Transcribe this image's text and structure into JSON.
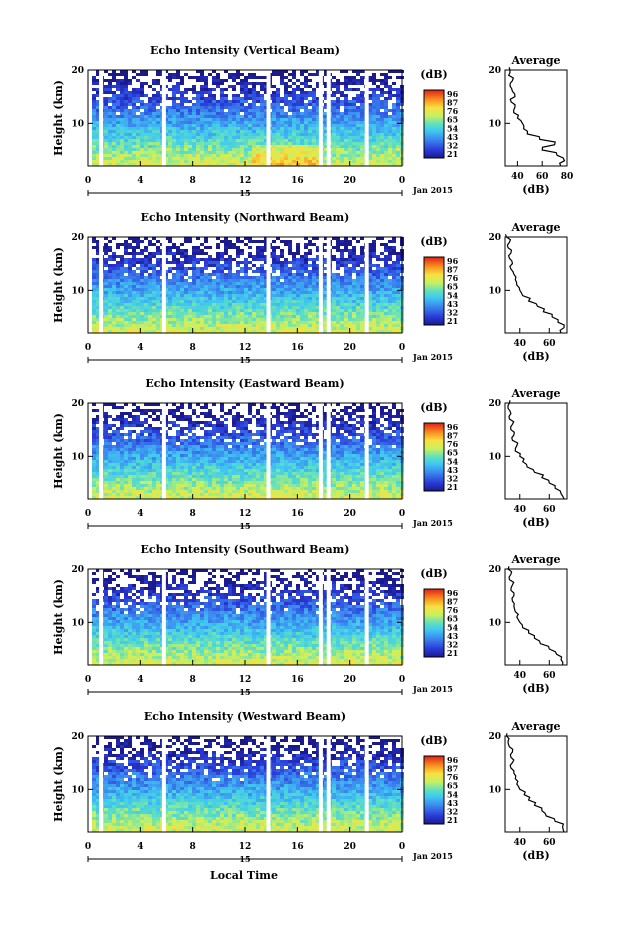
{
  "chart_data": [
    {
      "type": "heatmap",
      "title": "Echo Intensity (Vertical Beam)",
      "ylabel": "Height (km)",
      "x_ticks": [
        "0",
        "4",
        "8",
        "12",
        "16",
        "20",
        "0"
      ],
      "xlim": [
        0,
        24
      ],
      "y_ticks": [
        "20",
        "10"
      ],
      "ylim": [
        2,
        20
      ],
      "day_label": "15",
      "month_label": "Jan 2015",
      "gaps_hours": [
        1.0,
        5.8,
        13.8,
        17.8,
        18.4,
        21.3
      ],
      "colorbar": {
        "unit": "(dB)",
        "ticks": [
          "96",
          "87",
          "76",
          "65",
          "54",
          "43",
          "32",
          "21"
        ]
      },
      "average": {
        "title": "Average",
        "xlabel": "(dB)",
        "x_ticks": [
          "40",
          "60",
          "80"
        ],
        "xlim": [
          30,
          80
        ],
        "y_ticks": [
          "20",
          "10"
        ],
        "ylim": [
          2,
          20
        ],
        "profile": [
          [
            2,
            75
          ],
          [
            3,
            78
          ],
          [
            4,
            72
          ],
          [
            5,
            60
          ],
          [
            6,
            70
          ],
          [
            7,
            58
          ],
          [
            8,
            48
          ],
          [
            9,
            45
          ],
          [
            10,
            44
          ],
          [
            11,
            40
          ],
          [
            12,
            37
          ],
          [
            13,
            38
          ],
          [
            14,
            35
          ],
          [
            15,
            38
          ],
          [
            16,
            36
          ],
          [
            17,
            34
          ],
          [
            18,
            36
          ],
          [
            19,
            33
          ],
          [
            20,
            34
          ]
        ]
      }
    },
    {
      "type": "heatmap",
      "title": "Echo Intensity (Northward Beam)",
      "ylabel": "Height (km)",
      "x_ticks": [
        "0",
        "4",
        "8",
        "12",
        "16",
        "20",
        "0"
      ],
      "xlim": [
        0,
        24
      ],
      "y_ticks": [
        "20",
        "10"
      ],
      "ylim": [
        2,
        20
      ],
      "day_label": "15",
      "month_label": "Jan 2015",
      "gaps_hours": [
        1.0,
        5.8,
        13.8,
        17.8,
        18.4,
        21.3
      ],
      "colorbar": {
        "unit": "(dB)",
        "ticks": [
          "96",
          "87",
          "76",
          "65",
          "54",
          "43",
          "32",
          "21"
        ]
      },
      "average": {
        "title": "Average",
        "xlabel": "(dB)",
        "x_ticks": [
          "40",
          "60"
        ],
        "xlim": [
          30,
          72
        ],
        "y_ticks": [
          "20",
          "10"
        ],
        "ylim": [
          2,
          20
        ],
        "profile": [
          [
            2,
            68
          ],
          [
            3,
            70
          ],
          [
            4,
            66
          ],
          [
            5,
            62
          ],
          [
            6,
            56
          ],
          [
            7,
            52
          ],
          [
            8,
            46
          ],
          [
            9,
            42
          ],
          [
            10,
            40
          ],
          [
            11,
            38
          ],
          [
            12,
            37
          ],
          [
            13,
            36
          ],
          [
            14,
            34
          ],
          [
            15,
            35
          ],
          [
            16,
            33
          ],
          [
            17,
            34
          ],
          [
            18,
            32
          ],
          [
            19,
            33
          ],
          [
            20,
            31
          ]
        ]
      }
    },
    {
      "type": "heatmap",
      "title": "Echo Intensity (Eastward Beam)",
      "ylabel": "Height (km)",
      "x_ticks": [
        "0",
        "4",
        "8",
        "12",
        "16",
        "20",
        "0"
      ],
      "xlim": [
        0,
        24
      ],
      "y_ticks": [
        "20",
        "10"
      ],
      "ylim": [
        2,
        20
      ],
      "day_label": "15",
      "month_label": "Jan 2015",
      "gaps_hours": [
        1.0,
        5.8,
        13.8,
        17.8,
        18.4,
        21.3
      ],
      "colorbar": {
        "unit": "(dB)",
        "ticks": [
          "96",
          "87",
          "76",
          "65",
          "54",
          "43",
          "32",
          "21"
        ]
      },
      "average": {
        "title": "Average",
        "xlabel": "(dB)",
        "x_ticks": [
          "40",
          "60"
        ],
        "xlim": [
          30,
          72
        ],
        "y_ticks": [
          "20",
          "10"
        ],
        "ylim": [
          2,
          20
        ],
        "profile": [
          [
            2,
            70
          ],
          [
            3,
            68
          ],
          [
            4,
            64
          ],
          [
            5,
            60
          ],
          [
            6,
            55
          ],
          [
            7,
            50
          ],
          [
            8,
            45
          ],
          [
            9,
            42
          ],
          [
            10,
            40
          ],
          [
            11,
            37
          ],
          [
            12,
            38
          ],
          [
            13,
            35
          ],
          [
            14,
            36
          ],
          [
            15,
            34
          ],
          [
            16,
            35
          ],
          [
            17,
            33
          ],
          [
            18,
            34
          ],
          [
            19,
            32
          ],
          [
            20,
            33
          ]
        ]
      }
    },
    {
      "type": "heatmap",
      "title": "Echo Intensity (Southward Beam)",
      "ylabel": "Height (km)",
      "x_ticks": [
        "0",
        "4",
        "8",
        "12",
        "16",
        "20",
        "0"
      ],
      "xlim": [
        0,
        24
      ],
      "y_ticks": [
        "20",
        "10"
      ],
      "ylim": [
        2,
        20
      ],
      "day_label": "15",
      "month_label": "Jan 2015",
      "gaps_hours": [
        1.0,
        5.8,
        13.8,
        17.8,
        18.4,
        21.3
      ],
      "colorbar": {
        "unit": "(dB)",
        "ticks": [
          "96",
          "87",
          "76",
          "65",
          "54",
          "43",
          "32",
          "21"
        ]
      },
      "average": {
        "title": "Average",
        "xlabel": "(dB)",
        "x_ticks": [
          "40",
          "60"
        ],
        "xlim": [
          30,
          72
        ],
        "y_ticks": [
          "20",
          "10"
        ],
        "ylim": [
          2,
          20
        ],
        "profile": [
          [
            2,
            69
          ],
          [
            3,
            68
          ],
          [
            4,
            65
          ],
          [
            5,
            60
          ],
          [
            6,
            54
          ],
          [
            7,
            50
          ],
          [
            8,
            46
          ],
          [
            9,
            42
          ],
          [
            10,
            40
          ],
          [
            11,
            38
          ],
          [
            12,
            37
          ],
          [
            13,
            36
          ],
          [
            14,
            35
          ],
          [
            15,
            36
          ],
          [
            16,
            34
          ],
          [
            17,
            35
          ],
          [
            18,
            33
          ],
          [
            19,
            34
          ],
          [
            20,
            32
          ]
        ]
      }
    },
    {
      "type": "heatmap",
      "title": "Echo Intensity (Westward Beam)",
      "ylabel": "Height (km)",
      "x_ticks": [
        "0",
        "4",
        "8",
        "12",
        "16",
        "20",
        "0"
      ],
      "xlim": [
        0,
        24
      ],
      "y_ticks": [
        "20",
        "10"
      ],
      "ylim": [
        2,
        20
      ],
      "day_label": "15",
      "month_label": "Jan 2015",
      "gaps_hours": [
        1.0,
        5.8,
        13.8,
        17.8,
        18.4,
        21.3
      ],
      "colorbar": {
        "unit": "(dB)",
        "ticks": [
          "96",
          "87",
          "76",
          "65",
          "54",
          "43",
          "32",
          "21"
        ]
      },
      "average": {
        "title": "Average",
        "xlabel": "(dB)",
        "x_ticks": [
          "40",
          "60"
        ],
        "xlim": [
          30,
          72
        ],
        "y_ticks": [
          "20",
          "10"
        ],
        "ylim": [
          2,
          20
        ],
        "profile": [
          [
            2,
            70
          ],
          [
            3,
            69
          ],
          [
            4,
            64
          ],
          [
            5,
            58
          ],
          [
            6,
            55
          ],
          [
            7,
            50
          ],
          [
            8,
            46
          ],
          [
            9,
            43
          ],
          [
            10,
            40
          ],
          [
            11,
            38
          ],
          [
            12,
            37
          ],
          [
            13,
            36
          ],
          [
            14,
            34
          ],
          [
            15,
            35
          ],
          [
            16,
            34
          ],
          [
            17,
            35
          ],
          [
            18,
            33
          ],
          [
            19,
            32
          ],
          [
            20,
            31
          ]
        ]
      }
    }
  ],
  "footer": {
    "xlabel": "Local Time"
  }
}
